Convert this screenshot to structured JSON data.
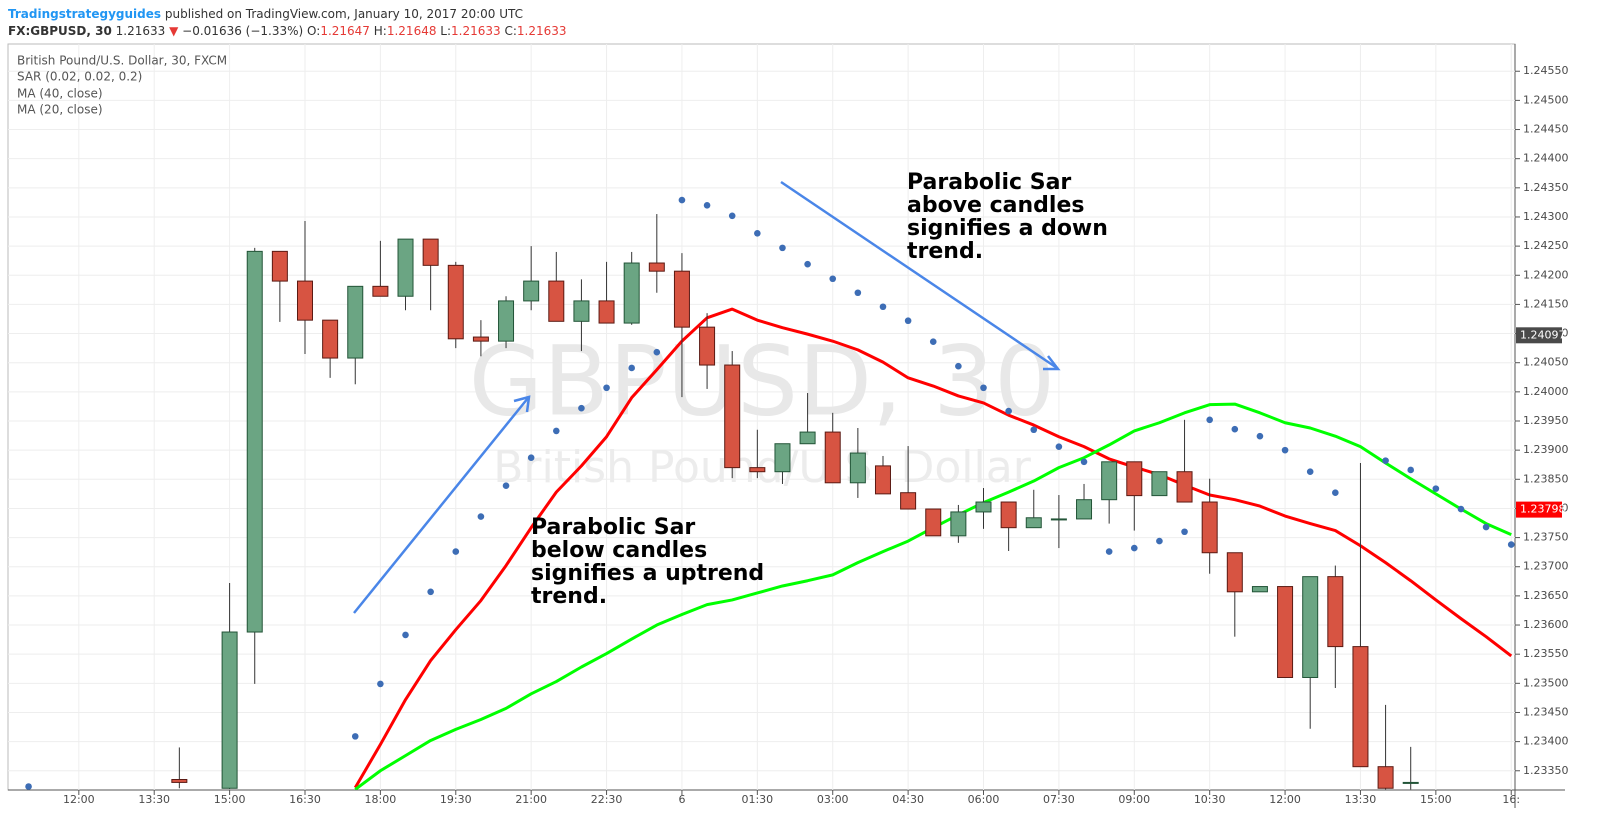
{
  "header": {
    "author": "Tradingstrategyguides",
    "published": "published on TradingView.com, January 10, 2017 20:00 UTC",
    "symbol": "FX:GBPUSD, 30",
    "price": "1.21633",
    "change_arrow": "▼",
    "change": "−0.01636 (−1.33%)",
    "o_label": "O:",
    "open": "1.21647",
    "h_label": "H:",
    "high": "1.21648",
    "l_label": "L:",
    "low": "1.21633",
    "c_label": "C:",
    "close": "1.21633"
  },
  "chart_data": {
    "type": "candlestick",
    "legend_title": "British Pound/U.S. Dollar, 30, FXCM",
    "watermark": "GBPUSD, 30",
    "watermark_subtitle": "British Pound/U.S. Dollar",
    "categories": [
      null,
      null,
      "12:00",
      null,
      null,
      "13:30",
      null,
      null,
      "15:00",
      null,
      null,
      "16:30",
      null,
      null,
      "18:00",
      null,
      null,
      "19:30",
      null,
      null,
      "21:00",
      null,
      null,
      "22:30",
      null,
      null,
      "6",
      null,
      null,
      "01:30",
      null,
      null,
      "03:00",
      null,
      null,
      "04:30",
      null,
      null,
      "06:00",
      null,
      null,
      "07:30",
      null,
      null,
      "09:00",
      null,
      null,
      "10:30",
      null,
      null,
      "12:00",
      null,
      null,
      "13:30",
      null,
      null,
      "15:00",
      null,
      null,
      "16:"
    ],
    "open": [
      null,
      null,
      null,
      null,
      null,
      null,
      1.23335,
      null,
      1.2332,
      1.23588,
      1.24241,
      1.2419,
      1.24123,
      1.24058,
      1.24181,
      1.24164,
      1.24262,
      1.24217,
      1.24094,
      1.24087,
      1.24156,
      1.2419,
      1.24121,
      1.24156,
      1.24118,
      1.24221,
      1.24207,
      1.24111,
      1.24046,
      1.2387,
      1.23863,
      1.23911,
      1.23931,
      1.23844,
      1.23873,
      1.23827,
      1.23799,
      1.23753,
      1.23794,
      1.23811,
      1.23767,
      1.23782,
      1.23782,
      1.23815,
      1.2388,
      1.23822,
      1.23863,
      1.23811,
      1.23724,
      1.23657,
      1.23666,
      1.2351,
      1.23683,
      1.23563,
      1.23357,
      1.2333,
      null,
      null,
      null,
      null
    ],
    "high": [
      null,
      null,
      null,
      null,
      null,
      null,
      1.2339,
      null,
      1.23672,
      1.24247,
      1.24241,
      1.24293,
      1.24123,
      1.24181,
      1.24259,
      1.24262,
      1.24262,
      1.24223,
      1.24123,
      1.24164,
      1.2425,
      1.2424,
      1.24193,
      1.24223,
      1.2424,
      1.24305,
      1.24238,
      1.24135,
      1.2407,
      1.23935,
      1.23911,
      1.23998,
      1.23964,
      1.23938,
      1.2389,
      1.23907,
      1.23799,
      1.23806,
      1.23835,
      1.23811,
      1.23832,
      1.23823,
      1.23842,
      1.2388,
      1.2388,
      1.23863,
      1.23952,
      1.23851,
      1.23724,
      1.23666,
      1.23666,
      1.23683,
      1.23702,
      1.23878,
      1.23463,
      1.23391,
      null,
      null,
      null,
      null
    ],
    "low": [
      null,
      null,
      null,
      null,
      null,
      null,
      1.2332,
      null,
      1.23318,
      1.23499,
      1.2412,
      1.24065,
      1.24024,
      1.24013,
      1.24164,
      1.2414,
      1.2414,
      1.24075,
      1.24061,
      1.24075,
      1.2414,
      1.24121,
      1.2407,
      1.24118,
      1.24115,
      1.2417,
      1.23991,
      1.24005,
      1.23852,
      1.23852,
      1.23842,
      1.23911,
      1.23844,
      1.23818,
      1.23825,
      1.23799,
      1.23753,
      1.23741,
      1.23765,
      1.23727,
      1.23767,
      1.23732,
      1.23782,
      1.23774,
      1.23762,
      1.23822,
      1.23811,
      1.23688,
      1.2358,
      1.23657,
      1.2351,
      1.23422,
      1.23492,
      1.23357,
      1.23318,
      1.23318,
      null,
      null,
      null,
      null
    ],
    "close": [
      null,
      null,
      null,
      null,
      null,
      null,
      1.2333,
      null,
      1.23588,
      1.24241,
      1.2419,
      1.24123,
      1.24058,
      1.24181,
      1.24164,
      1.24262,
      1.24217,
      1.24091,
      1.24087,
      1.24156,
      1.2419,
      1.24121,
      1.24156,
      1.24118,
      1.24221,
      1.24207,
      1.24111,
      1.24046,
      1.2387,
      1.23863,
      1.23911,
      1.23931,
      1.23844,
      1.23895,
      1.23825,
      1.23799,
      1.23753,
      1.23794,
      1.23811,
      1.23767,
      1.23784,
      1.23782,
      1.23815,
      1.2388,
      1.23822,
      1.23863,
      1.23811,
      1.23724,
      1.23657,
      1.23666,
      1.2351,
      1.23683,
      1.23563,
      1.23357,
      1.2332,
      1.2333,
      null,
      null,
      null,
      null
    ],
    "up_color": "#6ba583",
    "down_color": "#d75442",
    "sar": {
      "name": "SAR (0.02, 0.02, 0.2)",
      "color": "#3d6db5",
      "values": [
        1.23323,
        null,
        null,
        null,
        null,
        null,
        null,
        null,
        null,
        null,
        null,
        null,
        null,
        1.23409,
        1.23499,
        1.23583,
        1.23657,
        1.23726,
        1.23786,
        1.23839,
        1.23887,
        1.23933,
        1.23972,
        1.24007,
        1.24041,
        1.24068,
        1.24329,
        1.2432,
        1.24302,
        1.24272,
        1.24247,
        1.24219,
        1.24194,
        1.2417,
        1.24146,
        1.24122,
        1.24086,
        1.24044,
        1.24007,
        1.23967,
        1.23935,
        1.23906,
        1.2388,
        1.23726,
        1.23732,
        1.23744,
        1.2376,
        1.23952,
        1.23936,
        1.23924,
        1.239,
        1.23863,
        1.23827,
        null,
        1.23882,
        1.23866,
        1.23834,
        1.23799,
        1.23768,
        1.23738
      ]
    },
    "lines": [
      {
        "name": "MA (40, close)",
        "color": "#ff0000",
        "values": [
          null,
          null,
          null,
          null,
          null,
          null,
          null,
          null,
          null,
          null,
          null,
          null,
          null,
          1.23321,
          1.23395,
          1.23472,
          1.23539,
          1.23592,
          1.23642,
          1.23702,
          1.23767,
          1.23828,
          1.23873,
          1.23923,
          1.2399,
          1.24038,
          1.24087,
          1.24127,
          1.24142,
          1.24123,
          1.2411,
          1.24099,
          1.24087,
          1.24072,
          1.24051,
          1.24024,
          1.2401,
          1.23993,
          1.23981,
          1.2396,
          1.23943,
          1.23923,
          1.23906,
          1.23885,
          1.23871,
          1.23858,
          1.2384,
          1.23823,
          1.23815,
          1.23804,
          1.23787,
          1.23774,
          1.23762,
          1.23736,
          1.23707,
          1.23676,
          1.23643,
          1.23611,
          1.2358,
          1.23547
        ]
      },
      {
        "name": "MA (20, close)",
        "color": "#00ff00",
        "values": [
          null,
          null,
          null,
          null,
          null,
          null,
          null,
          null,
          null,
          null,
          null,
          null,
          null,
          1.23318,
          1.2335,
          1.23376,
          1.23402,
          1.23421,
          1.23438,
          1.23457,
          1.23482,
          1.23503,
          1.23528,
          1.23551,
          1.23576,
          1.236,
          1.23618,
          1.23635,
          1.23643,
          1.23655,
          1.23667,
          1.23676,
          1.23686,
          1.23707,
          1.23726,
          1.23744,
          1.23767,
          1.23789,
          1.2381,
          1.23828,
          1.23847,
          1.2387,
          1.23887,
          1.23909,
          1.23933,
          1.23947,
          1.23964,
          1.23978,
          1.23979,
          1.23964,
          1.23947,
          1.23938,
          1.23924,
          1.23906,
          1.23878,
          1.23851,
          1.23825,
          1.23799,
          1.23774,
          1.23755
        ]
      }
    ],
    "ylim": [
      1.23317,
      1.24595
    ],
    "yticks": [
      {
        "value": 1.2335,
        "label": "1.23350"
      },
      {
        "value": 1.234,
        "label": "1.23400"
      },
      {
        "value": 1.2345,
        "label": "1.23450"
      },
      {
        "value": 1.235,
        "label": "1.23500"
      },
      {
        "value": 1.2355,
        "label": "1.23550"
      },
      {
        "value": 1.236,
        "label": "1.23600"
      },
      {
        "value": 1.2365,
        "label": "1.23650"
      },
      {
        "value": 1.237,
        "label": "1.23700"
      },
      {
        "value": 1.2375,
        "label": "1.23750"
      },
      {
        "value": 1.238,
        "label": "1.23800"
      },
      {
        "value": 1.2385,
        "label": "1.23850"
      },
      {
        "value": 1.239,
        "label": "1.23900"
      },
      {
        "value": 1.2395,
        "label": "1.23950"
      },
      {
        "value": 1.24,
        "label": "1.24000"
      },
      {
        "value": 1.2405,
        "label": "1.24050"
      },
      {
        "value": 1.241,
        "label": "1.24100"
      },
      {
        "value": 1.2415,
        "label": "1.24150"
      },
      {
        "value": 1.242,
        "label": "1.24200"
      },
      {
        "value": 1.2425,
        "label": "1.24250"
      },
      {
        "value": 1.243,
        "label": "1.24300"
      },
      {
        "value": 1.2435,
        "label": "1.24350"
      },
      {
        "value": 1.244,
        "label": "1.24400"
      },
      {
        "value": 1.2445,
        "label": "1.24450"
      },
      {
        "value": 1.245,
        "label": "1.24500"
      },
      {
        "value": 1.2455,
        "label": "1.24550"
      }
    ],
    "price_labels": [
      {
        "value": 1.24097,
        "color": "#4a4a4a"
      },
      {
        "value": 1.23798,
        "color": "#ff0000"
      }
    ],
    "grid": true,
    "annotations": [
      {
        "lines": [
          "Parabolic Sar",
          "above candles",
          "signifies a down",
          "trend."
        ]
      },
      {
        "lines": [
          "Parabolic Sar",
          "below candles",
          "signifies a uptrend",
          "trend."
        ]
      }
    ]
  }
}
